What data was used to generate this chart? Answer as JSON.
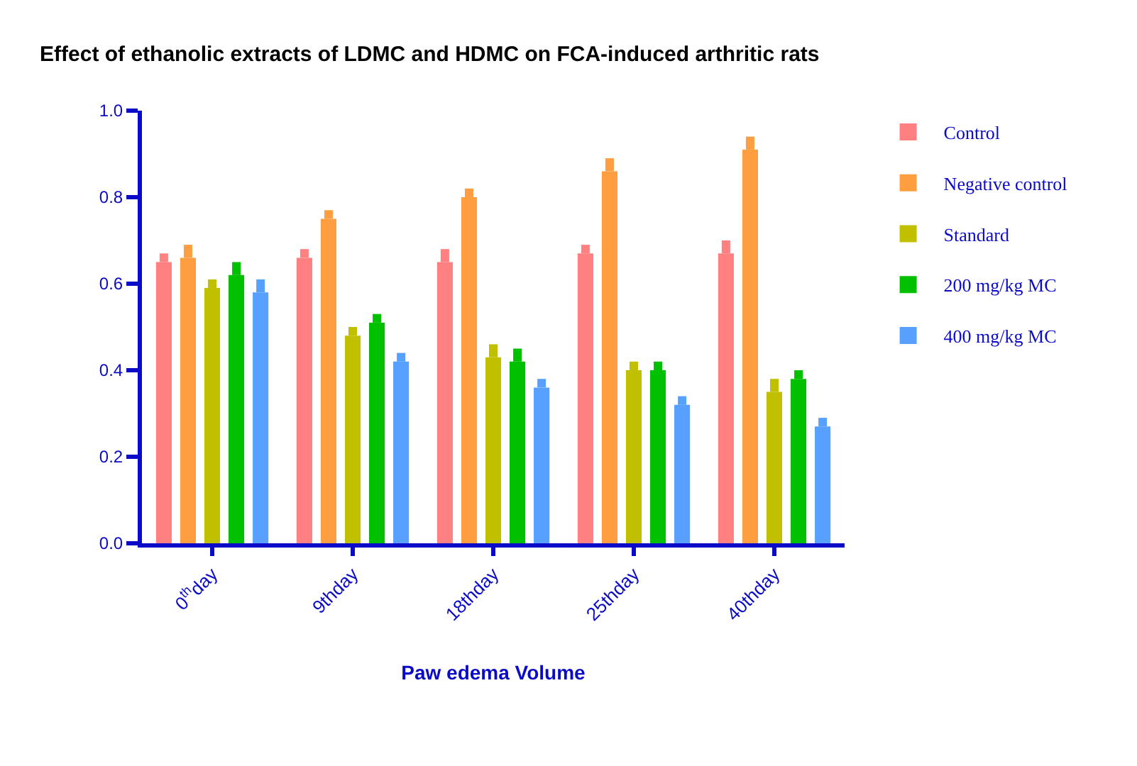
{
  "chart_data": {
    "type": "bar",
    "title": "Effect of ethanolic extracts of LDMC and HDMC on FCA-induced arthritic rats",
    "xlabel": "Paw edema Volume",
    "categories": [
      "0$^{th}$day",
      "9thday",
      "18thday",
      "25thday",
      "40thday"
    ],
    "series": [
      {
        "name": "Control",
        "color": "#ff8080",
        "values": [
          0.65,
          0.66,
          0.65,
          0.67,
          0.67
        ],
        "errors": [
          [
            0.65,
            0.67
          ],
          [
            0.66,
            0.68
          ],
          [
            0.65,
            0.68
          ],
          [
            0.67,
            0.69
          ],
          [
            0.67,
            0.7
          ]
        ]
      },
      {
        "name": "Negative control",
        "color": "#ff9e40",
        "values": [
          0.66,
          0.75,
          0.8,
          0.86,
          0.91
        ],
        "errors": [
          [
            0.66,
            0.69
          ],
          [
            0.75,
            0.77
          ],
          [
            0.8,
            0.82
          ],
          [
            0.86,
            0.89
          ],
          [
            0.91,
            0.94
          ]
        ]
      },
      {
        "name": "Standard",
        "color": "#c0c000",
        "values": [
          0.59,
          0.48,
          0.43,
          0.4,
          0.35
        ],
        "errors": [
          [
            0.59,
            0.61
          ],
          [
            0.48,
            0.5
          ],
          [
            0.43,
            0.46
          ],
          [
            0.4,
            0.42
          ],
          [
            0.35,
            0.38
          ]
        ]
      },
      {
        "name": "200 mg/kg MC",
        "color": "#00c000",
        "values": [
          0.62,
          0.51,
          0.42,
          0.4,
          0.38
        ],
        "errors": [
          [
            0.62,
            0.65
          ],
          [
            0.51,
            0.53
          ],
          [
            0.42,
            0.45
          ],
          [
            0.4,
            0.42
          ],
          [
            0.38,
            0.4
          ]
        ]
      },
      {
        "name": "400 mg/kg MC",
        "color": "#58a0ff",
        "values": [
          0.58,
          0.42,
          0.36,
          0.32,
          0.27
        ],
        "errors": [
          [
            0.58,
            0.61
          ],
          [
            0.42,
            0.44
          ],
          [
            0.36,
            0.38
          ],
          [
            0.32,
            0.34
          ],
          [
            0.27,
            0.29
          ]
        ]
      }
    ],
    "ylim": [
      0,
      1.0
    ],
    "yticks": [
      {
        "value": 0,
        "label": "0.0"
      },
      {
        "value": 0.2,
        "label": "0.2"
      },
      {
        "value": 0.4,
        "label": "0.4"
      },
      {
        "value": 0.6,
        "label": "0.6"
      },
      {
        "value": 0.8,
        "label": "0.8"
      },
      {
        "value": 1.0,
        "label": "1.0"
      }
    ],
    "legend": "right"
  }
}
